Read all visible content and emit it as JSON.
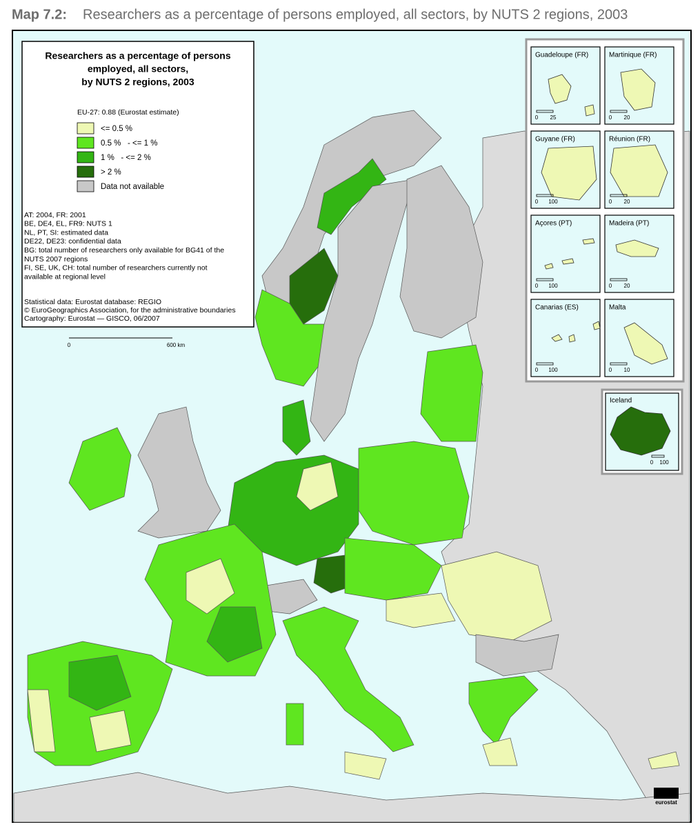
{
  "header": {
    "number": "Map 7.2:",
    "title": "Researchers as a percentage of persons employed, all sectors, by NUTS 2 regions, 2003"
  },
  "legend": {
    "title_lines": [
      "Researchers as a percentage of persons",
      "employed, all sectors,",
      "by NUTS 2 regions, 2003"
    ],
    "eu_note": "EU-27: 0.88 (Eurostat estimate)",
    "items": [
      {
        "label": "<= 0.5 %",
        "color": "#eef8b4"
      },
      {
        "label": "0.5 %   - <= 1 %",
        "color": "#5fe620"
      },
      {
        "label": "1 %   - <= 2 %",
        "color": "#33b514"
      },
      {
        "label": "> 2 %",
        "color": "#266e0c"
      },
      {
        "label": "Data not available",
        "color": "#c8c8c8"
      }
    ],
    "notes": [
      "AT: 2004, FR: 2001",
      "BE, DE4, EL, FR9: NUTS 1",
      "NL, PT, SI: estimated data",
      "DE22, DE23: confidential data",
      "BG: total number of researchers only available for BG41 of the",
      "NUTS 2007 regions",
      "FI, SE, UK, CH: total number of researchers currently not",
      "available at regional level"
    ],
    "sources": [
      "Statistical data: Eurostat database: REGIO",
      "© EuroGeographics Association, for the administrative boundaries",
      "Cartography: Eurostat — GISCO, 06/2007"
    ],
    "scale": {
      "start": "0",
      "end": "600 km"
    }
  },
  "insets": [
    {
      "label": "Guadeloupe (FR)",
      "scale": [
        "0",
        "25"
      ]
    },
    {
      "label": "Martinique (FR)",
      "scale": [
        "0",
        "20"
      ]
    },
    {
      "label": "Guyane (FR)",
      "scale": [
        "0",
        "100"
      ]
    },
    {
      "label": "Réunion (FR)",
      "scale": [
        "0",
        "20"
      ]
    },
    {
      "label": "Açores (PT)",
      "scale": [
        "0",
        "100"
      ]
    },
    {
      "label": "Madeira (PT)",
      "scale": [
        "0",
        "20"
      ]
    },
    {
      "label": "Canarias (ES)",
      "scale": [
        "0",
        "100"
      ]
    },
    {
      "label": "Malta",
      "scale": [
        "0",
        "10"
      ]
    }
  ],
  "iceland": {
    "label": "Iceland",
    "scale": [
      "0",
      "100"
    ]
  },
  "logo": "eurostat"
}
